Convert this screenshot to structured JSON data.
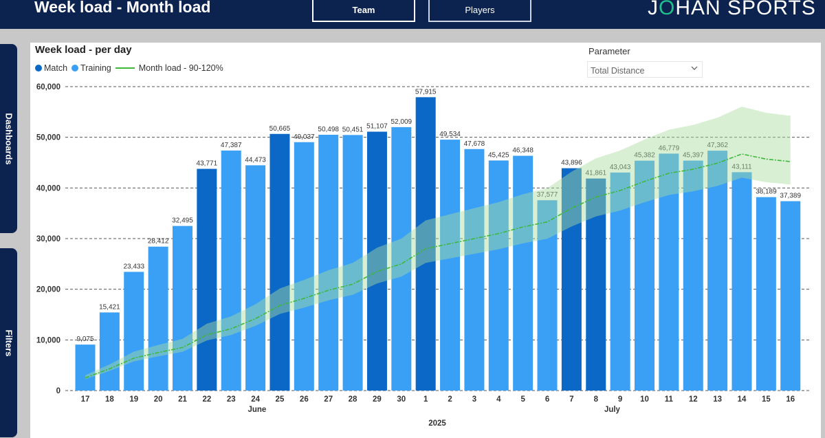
{
  "header": {
    "title": "Week load - Month load",
    "tabs": [
      {
        "label": "Team"
      },
      {
        "label": "Players"
      }
    ],
    "logo": {
      "part1": "J",
      "accent": "O",
      "part2": "HAN",
      "part3": "SPORTS"
    }
  },
  "sidebar": {
    "dashboards_label": "Dashboards",
    "filters_label": "Filters"
  },
  "parameter": {
    "label": "Parameter",
    "selected": "Total Distance"
  },
  "colors": {
    "navy": "#0c2350",
    "match": "#0b68c6",
    "training": "#3aa0f5",
    "month_line": "#3db83a",
    "band": "#a9dca0"
  },
  "chart_data": {
    "type": "bar",
    "title": "Week load - per day",
    "legend": [
      "Match",
      "Training",
      "Month load - 90-120%"
    ],
    "ylim": [
      0,
      60000
    ],
    "yticks": [
      "0",
      "10,000",
      "20,000",
      "30,000",
      "40,000",
      "50,000",
      "60,000"
    ],
    "categories": [
      "17",
      "18",
      "19",
      "20",
      "21",
      "22",
      "23",
      "24",
      "25",
      "26",
      "27",
      "28",
      "29",
      "30",
      "1",
      "2",
      "3",
      "4",
      "5",
      "6",
      "7",
      "8",
      "9",
      "10",
      "11",
      "12",
      "13",
      "14",
      "15",
      "16"
    ],
    "values": [
      9075,
      15421,
      23433,
      28412,
      32495,
      43771,
      47387,
      44473,
      50665,
      49037,
      50498,
      50451,
      51107,
      52009,
      57915,
      49534,
      47678,
      45425,
      46348,
      37577,
      43896,
      41861,
      43043,
      45382,
      46779,
      45397,
      47362,
      43111,
      38189,
      37389
    ],
    "labels": [
      "9,075",
      "15,421",
      "23,433",
      "28,412",
      "32,495",
      "43,771",
      "47,387",
      "44,473",
      "50,665",
      "49,037",
      "50,498",
      "50,451",
      "51,107",
      "52,009",
      "57,915",
      "49,534",
      "47,678",
      "45,425",
      "46,348",
      "37,577",
      "43,896",
      "41,861",
      "43,043",
      "45,382",
      "46,779",
      "45,397",
      "47,362",
      "43,111",
      "38,189",
      "37,389"
    ],
    "match_days": [
      false,
      false,
      false,
      false,
      false,
      true,
      false,
      false,
      true,
      false,
      false,
      false,
      true,
      false,
      true,
      false,
      false,
      false,
      false,
      false,
      true,
      true,
      false,
      false,
      false,
      false,
      false,
      false,
      false,
      false
    ],
    "month_load": [
      2500,
      4300,
      6400,
      7500,
      8500,
      11000,
      12200,
      14200,
      16800,
      18200,
      19800,
      21000,
      23500,
      25000,
      28000,
      29000,
      30000,
      31000,
      32300,
      33300,
      36000,
      38200,
      39500,
      41300,
      42900,
      43700,
      44900,
      46700,
      45700,
      45200
    ],
    "month_labels": [
      "June",
      "July"
    ],
    "year_label": "2025",
    "grid": "dashed horizontal"
  }
}
